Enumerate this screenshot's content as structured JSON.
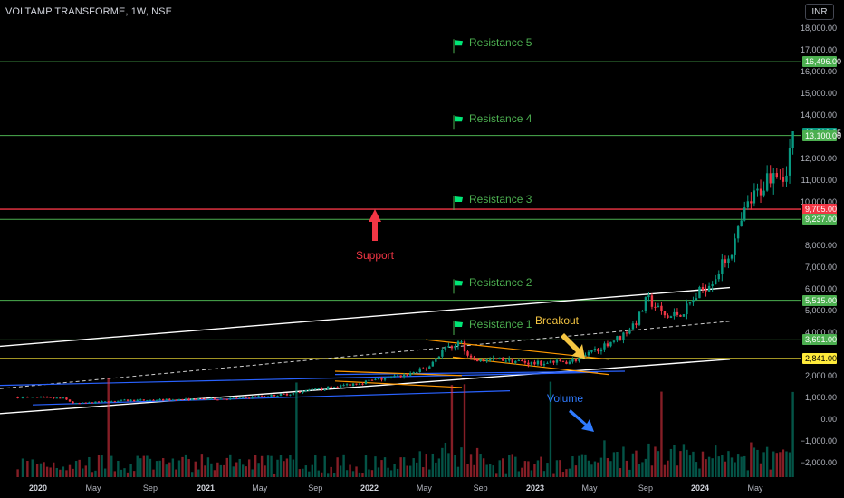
{
  "header": {
    "title": "VOLTAMP TRANSFORME, 1W, NSE",
    "currency": "INR"
  },
  "chart_data": {
    "type": "candlestick",
    "x_ticks": [
      {
        "label": "2020",
        "year": true,
        "t": 2020.0
      },
      {
        "label": "May",
        "year": false,
        "t": 2020.33
      },
      {
        "label": "Sep",
        "year": false,
        "t": 2020.67
      },
      {
        "label": "2021",
        "year": true,
        "t": 2021.0
      },
      {
        "label": "May",
        "year": false,
        "t": 2021.33
      },
      {
        "label": "Sep",
        "year": false,
        "t": 2021.67
      },
      {
        "label": "2022",
        "year": true,
        "t": 2022.0
      },
      {
        "label": "May",
        "year": false,
        "t": 2022.33
      },
      {
        "label": "Sep",
        "year": false,
        "t": 2022.67
      },
      {
        "label": "2023",
        "year": true,
        "t": 2023.0
      },
      {
        "label": "May",
        "year": false,
        "t": 2023.33
      },
      {
        "label": "Sep",
        "year": false,
        "t": 2023.67
      },
      {
        "label": "2024",
        "year": true,
        "t": 2024.0
      },
      {
        "label": "May",
        "year": false,
        "t": 2024.33
      }
    ],
    "y_ticks": [
      {
        "label": "18,000.00",
        "v": 18000
      },
      {
        "label": "17,000.00",
        "v": 17000
      },
      {
        "label": "16,000.00",
        "v": 16000
      },
      {
        "label": "15,000.00",
        "v": 15000
      },
      {
        "label": "14,000.00",
        "v": 14000
      },
      {
        "label": "12,000.00",
        "v": 12000
      },
      {
        "label": "11,000.00",
        "v": 11000
      },
      {
        "label": "10,000.00",
        "v": 10000
      },
      {
        "label": "8,000.00",
        "v": 8000
      },
      {
        "label": "7,000.00",
        "v": 7000
      },
      {
        "label": "6,000.00",
        "v": 6000
      },
      {
        "label": "5,000.00",
        "v": 5000
      },
      {
        "label": "4,000.00",
        "v": 4000
      },
      {
        "label": "2,000.00",
        "v": 2000
      },
      {
        "label": "1,000.00",
        "v": 1000
      },
      {
        "label": "0.00",
        "v": 0
      },
      {
        "label": "−1,000.00",
        "v": -1000
      },
      {
        "label": "−2,000.00",
        "v": -2000
      }
    ],
    "levels": [
      {
        "label": "16,496.00",
        "v": 16496,
        "color": "#4caf50"
      },
      {
        "label": "13,219.85",
        "v": 13219.85,
        "color": "#089981"
      },
      {
        "label": "13,100.00",
        "v": 13100,
        "color": "#4caf50"
      },
      {
        "label": "9,705.00",
        "v": 9705,
        "color": "#f23645"
      },
      {
        "label": "9,237.00",
        "v": 9237,
        "color": "#4caf50"
      },
      {
        "label": "5,515.00",
        "v": 5515,
        "color": "#4caf50"
      },
      {
        "label": "3,691.00",
        "v": 3691,
        "color": "#4caf50"
      },
      {
        "label": "2,841.00",
        "v": 2841,
        "color": "#ffeb3b"
      }
    ],
    "resistances": [
      {
        "label": "Resistance 5",
        "v": 17200
      },
      {
        "label": "Resistance 4",
        "v": 13700
      },
      {
        "label": "Resistance 3",
        "v": 10000
      },
      {
        "label": "Resistance 2",
        "v": 6150
      },
      {
        "label": "Resistance 1",
        "v": 4250
      }
    ],
    "annotations": {
      "support": "Support",
      "breakout": "Breakout",
      "volume": "Volume"
    },
    "colors": {
      "up": "#089981",
      "down": "#f23645",
      "background": "#000000"
    },
    "price_keypoints": [
      {
        "t": 2019.92,
        "v": 1050
      },
      {
        "t": 2020.15,
        "v": 1000
      },
      {
        "t": 2020.22,
        "v": 750
      },
      {
        "t": 2020.5,
        "v": 900
      },
      {
        "t": 2020.9,
        "v": 950
      },
      {
        "t": 2021.2,
        "v": 1000
      },
      {
        "t": 2021.5,
        "v": 1200
      },
      {
        "t": 2021.8,
        "v": 1550
      },
      {
        "t": 2022.0,
        "v": 1800
      },
      {
        "t": 2022.2,
        "v": 2050
      },
      {
        "t": 2022.35,
        "v": 2400
      },
      {
        "t": 2022.45,
        "v": 3300
      },
      {
        "t": 2022.55,
        "v": 3600
      },
      {
        "t": 2022.62,
        "v": 2700
      },
      {
        "t": 2022.8,
        "v": 2800
      },
      {
        "t": 2023.0,
        "v": 2600
      },
      {
        "t": 2023.2,
        "v": 2700
      },
      {
        "t": 2023.3,
        "v": 2900
      },
      {
        "t": 2023.4,
        "v": 3400
      },
      {
        "t": 2023.52,
        "v": 3850
      },
      {
        "t": 2023.62,
        "v": 4600
      },
      {
        "t": 2023.68,
        "v": 5600
      },
      {
        "t": 2023.8,
        "v": 4700
      },
      {
        "t": 2023.9,
        "v": 5000
      },
      {
        "t": 2024.0,
        "v": 5900
      },
      {
        "t": 2024.1,
        "v": 6700
      },
      {
        "t": 2024.2,
        "v": 8000
      },
      {
        "t": 2024.28,
        "v": 9800
      },
      {
        "t": 2024.35,
        "v": 10500
      },
      {
        "t": 2024.45,
        "v": 11800
      },
      {
        "t": 2024.5,
        "v": 11200
      },
      {
        "t": 2024.56,
        "v": 13200
      }
    ]
  }
}
